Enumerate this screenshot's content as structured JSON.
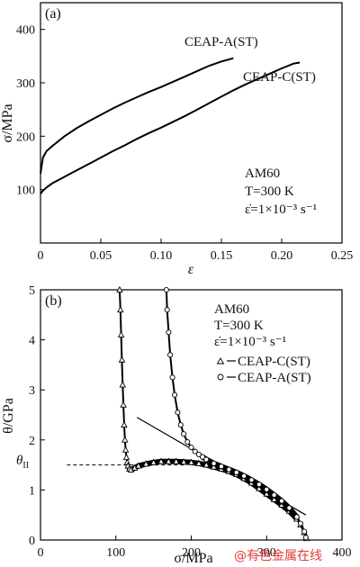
{
  "chart_data": [
    {
      "type": "line",
      "panel_label": "(a)",
      "xlabel": "ε",
      "ylabel": "σ/MPa",
      "xlim": [
        0,
        0.25
      ],
      "ylim": [
        0,
        450
      ],
      "xticks": [
        "0",
        "0.05",
        "0.10",
        "0.15",
        "0.20",
        "0.25"
      ],
      "xtick_values": [
        0,
        0.05,
        0.1,
        0.15,
        0.2,
        0.25
      ],
      "yticks": [
        "100",
        "200",
        "300",
        "400"
      ],
      "ytick_values": [
        100,
        200,
        300,
        400
      ],
      "annotations": [
        "AM60",
        "T=300 K",
        "ε̇=1×10⁻³ s⁻¹"
      ],
      "series": [
        {
          "name": "CEAP-A(ST)",
          "x": [
            0,
            0.002,
            0.005,
            0.01,
            0.02,
            0.03,
            0.04,
            0.05,
            0.06,
            0.07,
            0.08,
            0.09,
            0.1,
            0.11,
            0.12,
            0.13,
            0.14,
            0.15,
            0.16
          ],
          "y": [
            130,
            160,
            172,
            182,
            200,
            215,
            228,
            240,
            252,
            263,
            273,
            283,
            292,
            302,
            312,
            322,
            332,
            340,
            346
          ]
        },
        {
          "name": "CEAP-C(ST)",
          "x": [
            0,
            0.002,
            0.005,
            0.01,
            0.02,
            0.03,
            0.04,
            0.05,
            0.06,
            0.07,
            0.08,
            0.09,
            0.1,
            0.11,
            0.12,
            0.13,
            0.14,
            0.15,
            0.16,
            0.17,
            0.18,
            0.19,
            0.2,
            0.21,
            0.215
          ],
          "y": [
            92,
            98,
            104,
            112,
            124,
            136,
            148,
            160,
            172,
            183,
            195,
            206,
            216,
            227,
            238,
            250,
            262,
            274,
            286,
            297,
            307,
            317,
            327,
            336,
            338
          ]
        }
      ]
    },
    {
      "type": "scatter",
      "panel_label": "(b)",
      "xlabel": "σ/MPa",
      "ylabel": "θ/GPa",
      "xlim": [
        0,
        400
      ],
      "ylim": [
        0,
        5
      ],
      "xticks": [
        "0",
        "100",
        "200",
        "300",
        "400"
      ],
      "xtick_values": [
        0,
        100,
        200,
        300,
        400
      ],
      "yticks": [
        "0",
        "1",
        "2",
        "3",
        "4",
        "5"
      ],
      "ytick_values": [
        0,
        1,
        2,
        3,
        4,
        5
      ],
      "annotations": [
        "AM60",
        "T=300 K",
        "ε̇=1×10⁻³ s⁻¹",
        "θII"
      ],
      "series": [
        {
          "name": "CEAP-C(ST)",
          "marker": "triangle",
          "x": [
            105,
            106,
            107,
            108,
            109,
            110,
            111,
            112,
            113,
            114,
            115,
            116,
            118,
            120,
            125,
            130,
            140,
            150,
            160,
            170,
            180,
            190,
            200,
            210,
            220,
            230,
            240,
            250,
            260,
            270,
            280,
            290,
            300,
            310,
            320,
            330,
            340,
            345,
            350,
            353
          ],
          "y": [
            5.0,
            4.6,
            4.1,
            3.6,
            3.1,
            2.7,
            2.3,
            2.0,
            1.8,
            1.65,
            1.55,
            1.48,
            1.42,
            1.4,
            1.44,
            1.48,
            1.52,
            1.55,
            1.57,
            1.57,
            1.57,
            1.56,
            1.55,
            1.53,
            1.5,
            1.46,
            1.42,
            1.37,
            1.31,
            1.23,
            1.14,
            1.03,
            0.92,
            0.81,
            0.7,
            0.58,
            0.42,
            0.3,
            0.15,
            0.03
          ]
        },
        {
          "name": "CEAP-A(ST)",
          "marker": "circle",
          "x": [
            167,
            168,
            170,
            172,
            175,
            178,
            182,
            186,
            190,
            195,
            200,
            205,
            210,
            215,
            220,
            230,
            240,
            250,
            260,
            270,
            280,
            290,
            300,
            310,
            320,
            330,
            340,
            345,
            350,
            352
          ],
          "y": [
            5.0,
            4.6,
            4.15,
            3.7,
            3.25,
            2.9,
            2.55,
            2.3,
            2.12,
            1.96,
            1.85,
            1.77,
            1.71,
            1.66,
            1.61,
            1.53,
            1.47,
            1.41,
            1.35,
            1.28,
            1.2,
            1.11,
            1.01,
            0.9,
            0.78,
            0.64,
            0.46,
            0.33,
            0.17,
            0.05
          ]
        }
      ],
      "reference_lines": [
        {
          "type": "tangent",
          "x": [
            128,
            352
          ],
          "y": [
            2.45,
            0.5
          ]
        },
        {
          "type": "dashed",
          "x": [
            35,
            192
          ],
          "y": [
            1.5,
            1.5
          ]
        }
      ]
    }
  ],
  "watermark": "@有色金属在线"
}
